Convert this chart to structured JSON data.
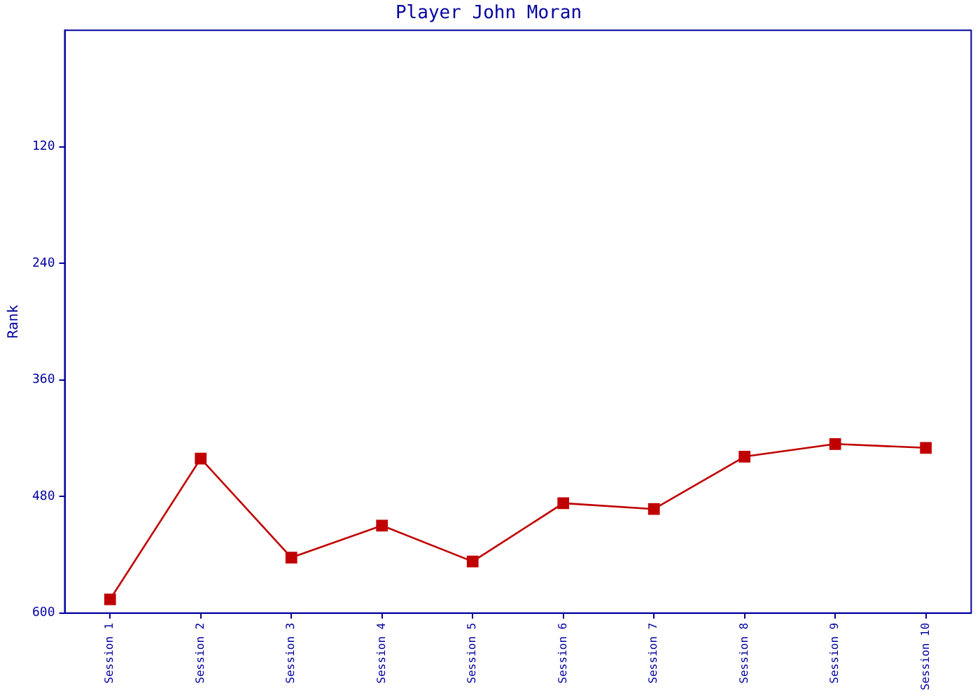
{
  "chart_data": {
    "type": "line",
    "title": "Player John Moran",
    "ylabel": "Rank",
    "categories": [
      "Session 1",
      "Session 2",
      "Session 3",
      "Session 4",
      "Session 5",
      "Session 6",
      "Session 7",
      "Session 8",
      "Session 9",
      "Session 10"
    ],
    "series": [
      {
        "color": "#c00000",
        "values": [
          586,
          441,
          543,
          510,
          547,
          487,
          493,
          439,
          426,
          430
        ]
      }
    ],
    "ylim": [
      600,
      0
    ],
    "yticks": [
      120,
      240,
      360,
      480,
      600
    ],
    "marker": "square",
    "grid": false,
    "legend": false
  }
}
